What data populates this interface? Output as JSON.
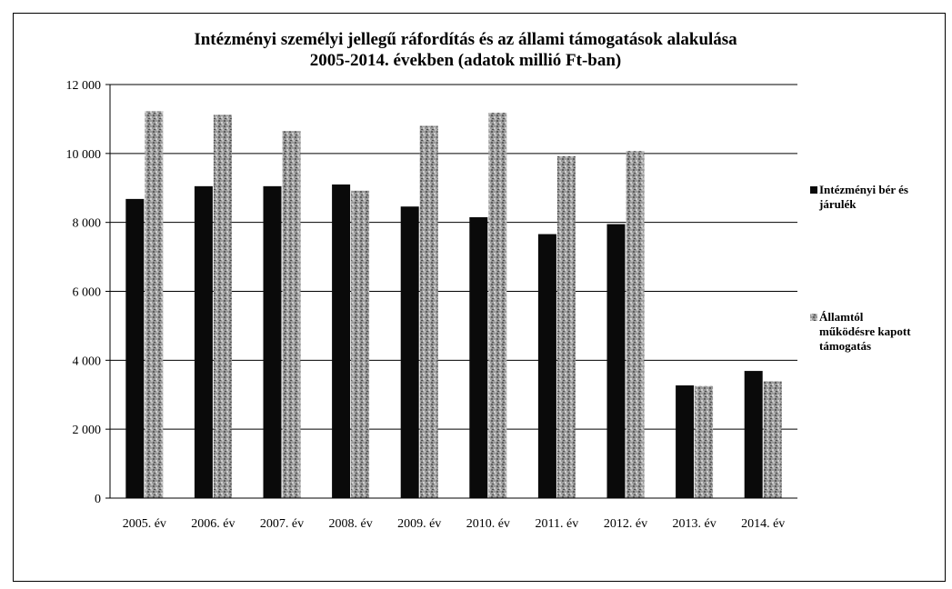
{
  "chart_data": {
    "type": "bar",
    "title": "Intézményi személyi jellegű ráfordítás és az állami támogatások alakulása",
    "subtitle": "2005-2014. években (adatok millió Ft-ban)",
    "categories": [
      "2005. év",
      "2006. év",
      "2007. év",
      "2008. év",
      "2009. év",
      "2010. év",
      "2011. év",
      "2012. év",
      "2013. év",
      "2014. év"
    ],
    "series": [
      {
        "name": "Intézményi bér és járulék",
        "values": [
          8680,
          9050,
          9050,
          9100,
          8460,
          8150,
          7660,
          7950,
          3270,
          3690
        ],
        "color": "#0a0a0a"
      },
      {
        "name": "Államtól működésre kapott támogatás",
        "values": [
          11230,
          11120,
          10650,
          8920,
          10800,
          11180,
          9920,
          10070,
          3250,
          3390
        ],
        "color": "#8c8c8c"
      }
    ],
    "yticks": [
      "0",
      "2 000",
      "4 000",
      "6 000",
      "8 000",
      "10 000",
      "12 000"
    ],
    "ylim": [
      0,
      12000
    ],
    "grid": true,
    "legend": "right"
  }
}
